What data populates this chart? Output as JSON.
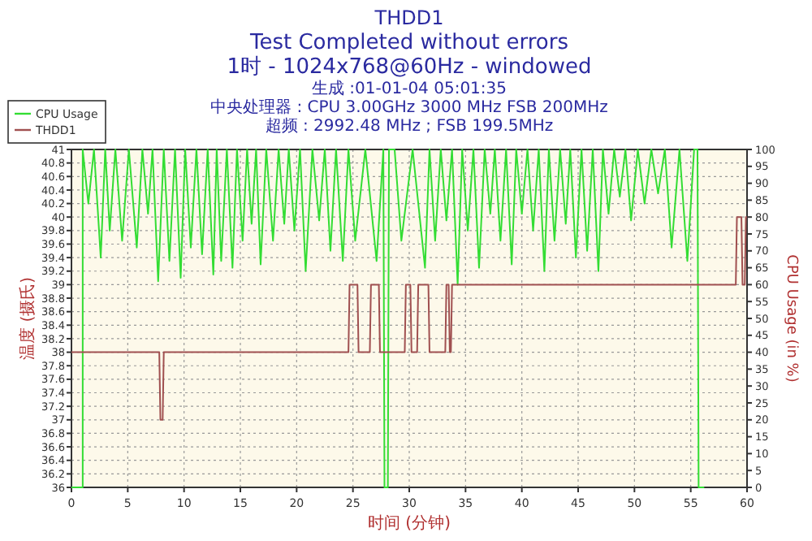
{
  "chart_data": {
    "type": "line",
    "title": "THDD1",
    "subtitle": "Test Completed without errors",
    "annotations": [
      "1时 - 1024x768@60Hz - windowed",
      "生成 :01-01-04 05:01:35",
      "中央处理器 : CPU 3.00GHz 3000 MHz FSB 200MHz",
      "超频 : 2992.48 MHz ; FSB 199.5MHz"
    ],
    "xlabel": "时间 (分钟)",
    "ylabel": "温度 (摄氏)",
    "y2label": "CPU Usage (in %)",
    "xlim": [
      0,
      60
    ],
    "xticks": [
      0,
      5,
      10,
      15,
      20,
      25,
      30,
      35,
      40,
      45,
      50,
      55,
      60
    ],
    "ylim": [
      36,
      41
    ],
    "yticks": [
      36,
      36.2,
      36.4,
      36.6,
      36.8,
      37,
      37.2,
      37.4,
      37.6,
      37.8,
      38,
      38.2,
      38.4,
      38.6,
      38.8,
      39,
      39.2,
      39.4,
      39.6,
      39.8,
      40,
      40.2,
      40.4,
      40.6,
      40.8,
      41
    ],
    "y2lim": [
      0,
      100
    ],
    "y2ticks": [
      0,
      5,
      10,
      15,
      20,
      25,
      30,
      35,
      40,
      45,
      50,
      55,
      60,
      65,
      70,
      75,
      80,
      85,
      90,
      95,
      100
    ],
    "grid": true,
    "legend": "top left",
    "line_style": "solid",
    "series": [
      {
        "name": "CPU Usage",
        "color": "#33dd33",
        "axis": "y2",
        "x": [
          0,
          1,
          1,
          1.5,
          2,
          2.6,
          3,
          3.4,
          3.9,
          4.5,
          5.1,
          5.8,
          6.3,
          6.8,
          7.2,
          7.7,
          8.2,
          8.7,
          9.2,
          9.7,
          10.1,
          10.6,
          11.1,
          11.6,
          12.1,
          12.6,
          12.9,
          13.3,
          13.8,
          14.3,
          14.7,
          15.2,
          15.6,
          16.0,
          16.4,
          16.8,
          17.3,
          17.9,
          18.4,
          18.9,
          19.3,
          19.8,
          20.3,
          20.8,
          21.4,
          22.0,
          22.5,
          23.0,
          23.5,
          24.1,
          24.6,
          25.2,
          26.1,
          27.1,
          27.7,
          27.8,
          28.1,
          28.2,
          28.7,
          29.3,
          30.3,
          31.4,
          31.8,
          32.3,
          32.8,
          33.3,
          33.8,
          34.3,
          34.7,
          35.2,
          35.7,
          36.2,
          36.7,
          37.2,
          37.6,
          38.1,
          38.6,
          39.1,
          39.5,
          40.0,
          40.5,
          41.0,
          41.5,
          42.0,
          42.4,
          42.9,
          43.4,
          43.9,
          44.3,
          44.8,
          45.3,
          45.8,
          46.3,
          46.8,
          47.2,
          47.7,
          48.2,
          48.7,
          49.2,
          49.7,
          50.3,
          50.9,
          51.5,
          52.1,
          52.7,
          53.3,
          54.0,
          54.7,
          55.3,
          55.6,
          55.7,
          56.2
        ],
        "values": [
          0,
          0,
          100,
          84,
          100,
          68,
          100,
          76,
          100,
          73,
          100,
          71,
          100,
          81,
          100,
          61,
          100,
          67,
          100,
          62,
          100,
          71,
          100,
          69,
          100,
          63,
          100,
          67,
          100,
          65,
          100,
          73,
          100,
          78,
          100,
          66,
          100,
          73,
          100,
          78,
          100,
          76,
          100,
          64,
          100,
          79,
          100,
          70,
          100,
          67,
          100,
          73,
          100,
          67,
          100,
          0,
          0,
          100,
          100,
          73,
          100,
          65,
          100,
          73,
          100,
          79,
          100,
          60,
          100,
          76,
          100,
          65,
          100,
          81,
          100,
          73,
          100,
          66,
          100,
          81,
          100,
          76,
          100,
          64,
          100,
          73,
          100,
          78,
          100,
          68,
          100,
          70,
          100,
          64,
          100,
          81,
          100,
          86,
          100,
          79,
          100,
          84,
          100,
          87,
          100,
          71,
          100,
          67,
          100,
          100,
          0,
          0
        ]
      },
      {
        "name": "THDD1",
        "color": "#a05050",
        "x": [
          0,
          7.8,
          7.9,
          8.1,
          8.2,
          24.6,
          24.7,
          25.4,
          25.5,
          26.5,
          26.6,
          27.3,
          27.4,
          29.6,
          29.7,
          30.1,
          30.2,
          30.7,
          30.8,
          31.7,
          31.8,
          33.2,
          33.3,
          33.5,
          33.6,
          33.7,
          33.8,
          59.0,
          59.1,
          59.5,
          59.6,
          59.8,
          59.9,
          60
        ],
        "values": [
          38,
          38,
          37,
          37,
          38,
          38,
          39,
          39,
          38,
          38,
          39,
          39,
          38,
          38,
          39,
          39,
          38,
          38,
          39,
          39,
          38,
          38,
          39,
          39,
          38,
          38,
          39,
          39,
          40,
          40,
          39,
          39,
          40,
          40
        ]
      }
    ]
  }
}
